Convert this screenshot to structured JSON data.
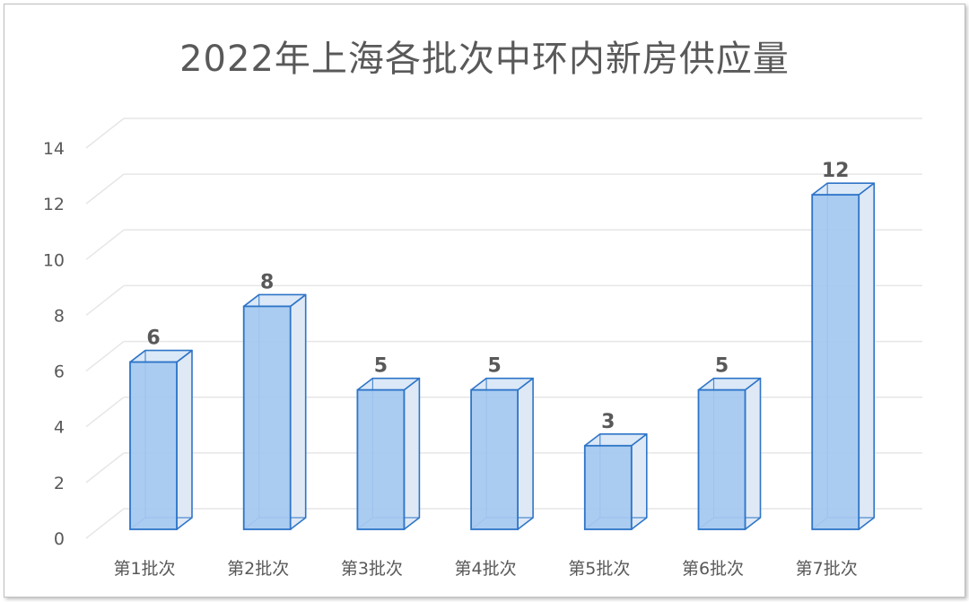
{
  "chart_data": {
    "type": "bar",
    "style": "3d-column",
    "title": "2022年上海各批次中环内新房供应量",
    "categories": [
      "第1批次",
      "第2批次",
      "第3批次",
      "第4批次",
      "第5批次",
      "第6批次",
      "第7批次"
    ],
    "values": [
      6,
      8,
      5,
      5,
      3,
      5,
      12
    ],
    "data_labels": [
      "6",
      "8",
      "5",
      "5",
      "3",
      "5",
      "12"
    ],
    "xlabel": "",
    "ylabel": "",
    "ylim": [
      0,
      14
    ],
    "yticks": [
      "0",
      "2",
      "4",
      "6",
      "8",
      "10",
      "12",
      "14"
    ],
    "grid": true,
    "legend": "none",
    "colors": {
      "bar_fill": "#a4c8f0",
      "bar_stroke": "#2e75c8",
      "bar_side": "#dfe9f5",
      "grid": "#e6e6e6",
      "text": "#595959"
    }
  }
}
